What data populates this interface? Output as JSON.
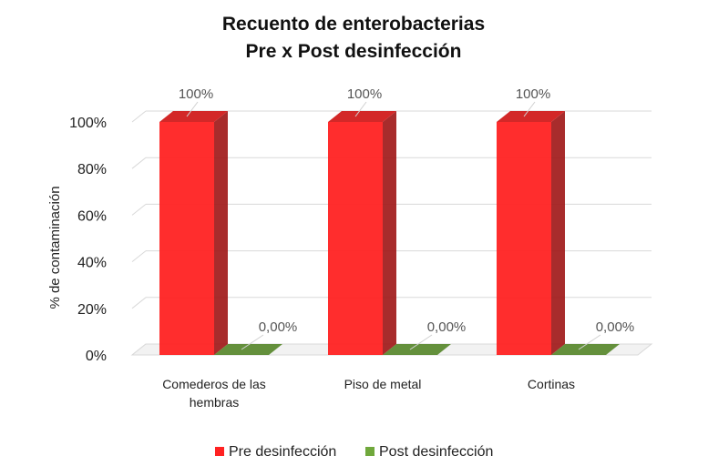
{
  "chart_data": {
    "type": "bar",
    "title": [
      "Recuento de enterobacterias",
      "Pre x Post desinfección"
    ],
    "ylabel": "% de contaminación",
    "xlabel": "",
    "ylim": [
      0,
      100
    ],
    "yticks": [
      0,
      20,
      40,
      60,
      80,
      100
    ],
    "ytick_labels": [
      "0%",
      "20%",
      "40%",
      "60%",
      "80%",
      "100%"
    ],
    "categories": [
      [
        "Comederos de las",
        "hembras"
      ],
      [
        "Piso de metal"
      ],
      [
        "Cortinas"
      ]
    ],
    "series": [
      {
        "name": "Pre desinfección",
        "color": "#ff2222",
        "values": [
          100,
          100,
          100
        ],
        "labels": [
          "100%",
          "100%",
          "100%"
        ]
      },
      {
        "name": "Post desinfección",
        "color": "#70a83c",
        "values": [
          0,
          0,
          0
        ],
        "labels": [
          "0,00%",
          "0,00%",
          "0,00%"
        ]
      }
    ],
    "legend_position": "bottom",
    "grid": true
  }
}
